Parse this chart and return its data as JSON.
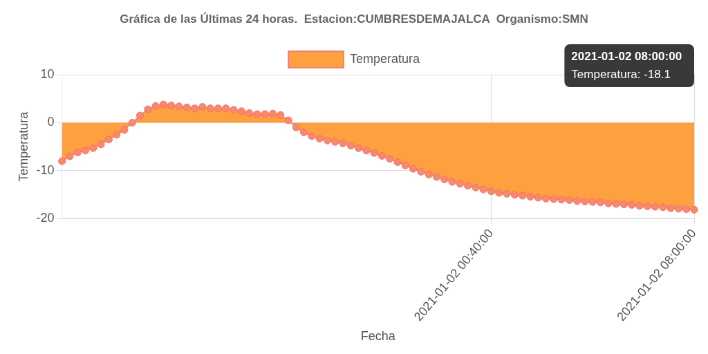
{
  "chart_data": {
    "type": "area",
    "title": "Gráfica de las Últimas 24 horas.  Estacion:CUMBRESDEMAJALCA  Organismo:SMN",
    "xlabel": "Fecha",
    "ylabel": "Temperatura",
    "categories": [
      null,
      null,
      null,
      null,
      null,
      null,
      null,
      null,
      null,
      null,
      null,
      null,
      null,
      null,
      null,
      null,
      null,
      null,
      null,
      null,
      null,
      null,
      null,
      null,
      null,
      null,
      null,
      null,
      null,
      null,
      null,
      null,
      null,
      null,
      null,
      null,
      null,
      null,
      null,
      null,
      null,
      null,
      null,
      null,
      null,
      null,
      null,
      null,
      null,
      null,
      null,
      null,
      null,
      null,
      null,
      "2021-01-02 00:40:00",
      null,
      null,
      null,
      null,
      null,
      null,
      null,
      null,
      null,
      null,
      null,
      null,
      null,
      null,
      null,
      null,
      null,
      null,
      null,
      null,
      null,
      null,
      null,
      null,
      null,
      "2021-01-02 08:00:00"
    ],
    "series": [
      {
        "name": "Temperatura",
        "color": "#ffa040",
        "values": [
          -8,
          -7,
          -6.2,
          -5.8,
          -5.3,
          -4.5,
          -3.5,
          -2.5,
          -1.5,
          0,
          1.5,
          2.8,
          3.5,
          3.8,
          3.6,
          3.4,
          3.2,
          3,
          3.3,
          3,
          3,
          3,
          2.7,
          2.4,
          2,
          1.8,
          1.8,
          1.9,
          1.6,
          0.5,
          -1,
          -2,
          -2.8,
          -3.3,
          -3.7,
          -4,
          -4.3,
          -4.8,
          -5.3,
          -5.8,
          -6.3,
          -6.9,
          -7.5,
          -8.2,
          -8.9,
          -9.6,
          -10.2,
          -10.8,
          -11.3,
          -11.8,
          -12.3,
          -12.7,
          -13.1,
          -13.5,
          -13.9,
          -14.3,
          -14.6,
          -14.8,
          -15,
          -15.2,
          -15.4,
          -15.6,
          -15.8,
          -15.9,
          -16,
          -16.1,
          -16.3,
          -16.4,
          -16.5,
          -16.6,
          -16.8,
          -16.9,
          -17,
          -17.1,
          -17.3,
          -17.4,
          -17.5,
          -17.6,
          -17.8,
          -17.9,
          -18,
          -18.1
        ]
      }
    ],
    "ylim": [
      -20,
      10
    ],
    "yticks": [
      10,
      0,
      -10,
      -20
    ],
    "grid": true,
    "legend": "top",
    "marker": "circle",
    "annotations": [
      "2021-01-02 08:00:00\nTemperatura: -18.1"
    ]
  }
}
